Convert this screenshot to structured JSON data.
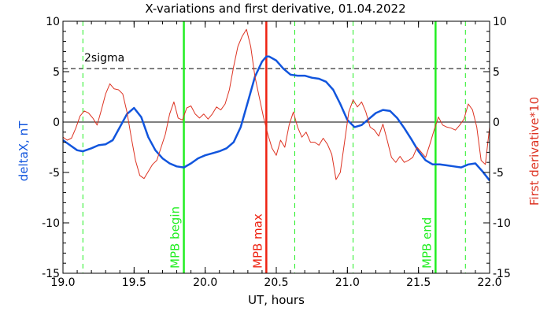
{
  "chart_data": {
    "type": "line",
    "title": "X-variations and first derivative, 01.04.2022",
    "xlabel": "UT, hours",
    "ylabel_left": "deltaX, nT",
    "ylabel_right": "First derivative*10",
    "xlim": [
      19.0,
      22.0
    ],
    "ylim": [
      -15,
      10
    ],
    "x_ticks": [
      "19.0",
      "19.5",
      "20.0",
      "20.5",
      "21.0",
      "21.5",
      "22.0"
    ],
    "y_ticks": [
      "10",
      "5",
      "0",
      "-5",
      "-10",
      "-15"
    ],
    "sigma_label": "2sigma",
    "sigma_level": 5.3,
    "zero_level": 0,
    "colors": {
      "deltaX": "#1155dd",
      "derivative": "#dd3322",
      "mpb_green": "#22ee22",
      "mpb_max": "#ee2211",
      "dashed_green": "#22ee22"
    },
    "vertical_markers": [
      {
        "x": 19.85,
        "label": "MPB begin",
        "color": "#22ee22"
      },
      {
        "x": 20.43,
        "label": "MPB max",
        "color": "#ee2211"
      },
      {
        "x": 21.62,
        "label": "MPB end",
        "color": "#22ee22"
      }
    ],
    "dashed_markers": [
      19.14,
      20.63,
      21.04,
      21.83
    ],
    "series": [
      {
        "name": "deltaX, nT",
        "axis": "left",
        "x": [
          19.0,
          19.05,
          19.1,
          19.14,
          19.2,
          19.25,
          19.3,
          19.35,
          19.4,
          19.45,
          19.5,
          19.55,
          19.6,
          19.65,
          19.7,
          19.75,
          19.8,
          19.85,
          19.9,
          19.95,
          20.0,
          20.05,
          20.1,
          20.15,
          20.2,
          20.25,
          20.3,
          20.35,
          20.4,
          20.43,
          20.45,
          20.5,
          20.55,
          20.6,
          20.65,
          20.7,
          20.75,
          20.8,
          20.85,
          20.9,
          20.95,
          21.0,
          21.05,
          21.1,
          21.15,
          21.2,
          21.25,
          21.3,
          21.35,
          21.4,
          21.45,
          21.5,
          21.55,
          21.6,
          21.65,
          21.7,
          21.75,
          21.8,
          21.85,
          21.9,
          21.95,
          22.0
        ],
        "values": [
          -1.8,
          -2.3,
          -2.8,
          -2.9,
          -2.6,
          -2.3,
          -2.2,
          -1.8,
          -0.5,
          0.8,
          1.4,
          0.5,
          -1.5,
          -2.8,
          -3.6,
          -4.1,
          -4.4,
          -4.5,
          -4.1,
          -3.6,
          -3.3,
          -3.1,
          -2.9,
          -2.6,
          -2.0,
          -0.5,
          2.0,
          4.5,
          6.0,
          6.5,
          6.5,
          6.1,
          5.3,
          4.7,
          4.6,
          4.6,
          4.4,
          4.3,
          4.0,
          3.2,
          1.8,
          0.2,
          -0.5,
          -0.3,
          0.3,
          0.9,
          1.2,
          1.1,
          0.4,
          -0.6,
          -1.7,
          -2.9,
          -3.8,
          -4.2,
          -4.2,
          -4.3,
          -4.4,
          -4.5,
          -4.2,
          -4.1,
          -4.9,
          -5.8
        ]
      },
      {
        "name": "First derivative*10",
        "axis": "right",
        "x": [
          19.0,
          19.03,
          19.06,
          19.09,
          19.12,
          19.15,
          19.18,
          19.21,
          19.24,
          19.27,
          19.3,
          19.33,
          19.36,
          19.39,
          19.42,
          19.45,
          19.48,
          19.51,
          19.54,
          19.57,
          19.6,
          19.63,
          19.66,
          19.69,
          19.72,
          19.75,
          19.78,
          19.81,
          19.84,
          19.87,
          19.9,
          19.93,
          19.96,
          19.99,
          20.02,
          20.05,
          20.08,
          20.11,
          20.14,
          20.17,
          20.2,
          20.23,
          20.26,
          20.29,
          20.32,
          20.35,
          20.38,
          20.41,
          20.44,
          20.47,
          20.5,
          20.53,
          20.56,
          20.59,
          20.62,
          20.65,
          20.68,
          20.71,
          20.74,
          20.77,
          20.8,
          20.83,
          20.86,
          20.89,
          20.92,
          20.95,
          20.98,
          21.01,
          21.04,
          21.07,
          21.1,
          21.13,
          21.16,
          21.19,
          21.22,
          21.25,
          21.28,
          21.31,
          21.34,
          21.37,
          21.4,
          21.43,
          21.46,
          21.49,
          21.52,
          21.55,
          21.58,
          21.61,
          21.64,
          21.67,
          21.7,
          21.73,
          21.76,
          21.79,
          21.82,
          21.85,
          21.88,
          21.91,
          21.94,
          21.97,
          22.0
        ],
        "values": [
          -1.5,
          -1.8,
          -1.6,
          -0.6,
          0.6,
          1.1,
          0.9,
          0.4,
          -0.3,
          1.2,
          2.8,
          3.8,
          3.3,
          3.2,
          2.8,
          1.0,
          -1.5,
          -3.8,
          -5.3,
          -5.6,
          -4.9,
          -4.2,
          -3.8,
          -2.5,
          -1.2,
          0.8,
          2.0,
          0.4,
          0.2,
          1.4,
          1.6,
          0.8,
          0.4,
          0.8,
          0.3,
          0.8,
          1.5,
          1.2,
          1.8,
          3.2,
          5.5,
          7.5,
          8.5,
          9.2,
          7.5,
          4.5,
          2.5,
          0.5,
          -1.2,
          -2.6,
          -3.3,
          -1.8,
          -2.5,
          -0.3,
          1.0,
          -0.5,
          -1.5,
          -1.0,
          -2.0,
          -2.0,
          -2.3,
          -1.6,
          -2.2,
          -3.2,
          -5.7,
          -5.0,
          -2.0,
          1.0,
          2.2,
          1.5,
          2.0,
          1.0,
          -0.5,
          -0.8,
          -1.4,
          -0.2,
          -1.8,
          -3.5,
          -4.0,
          -3.4,
          -4.0,
          -3.8,
          -3.5,
          -2.5,
          -3.0,
          -3.5,
          -2.2,
          -0.8,
          0.5,
          -0.3,
          -0.5,
          -0.6,
          -0.8,
          -0.3,
          0.3,
          1.8,
          1.2,
          -0.5,
          -3.8,
          -4.2,
          -0.5
        ]
      }
    ]
  }
}
